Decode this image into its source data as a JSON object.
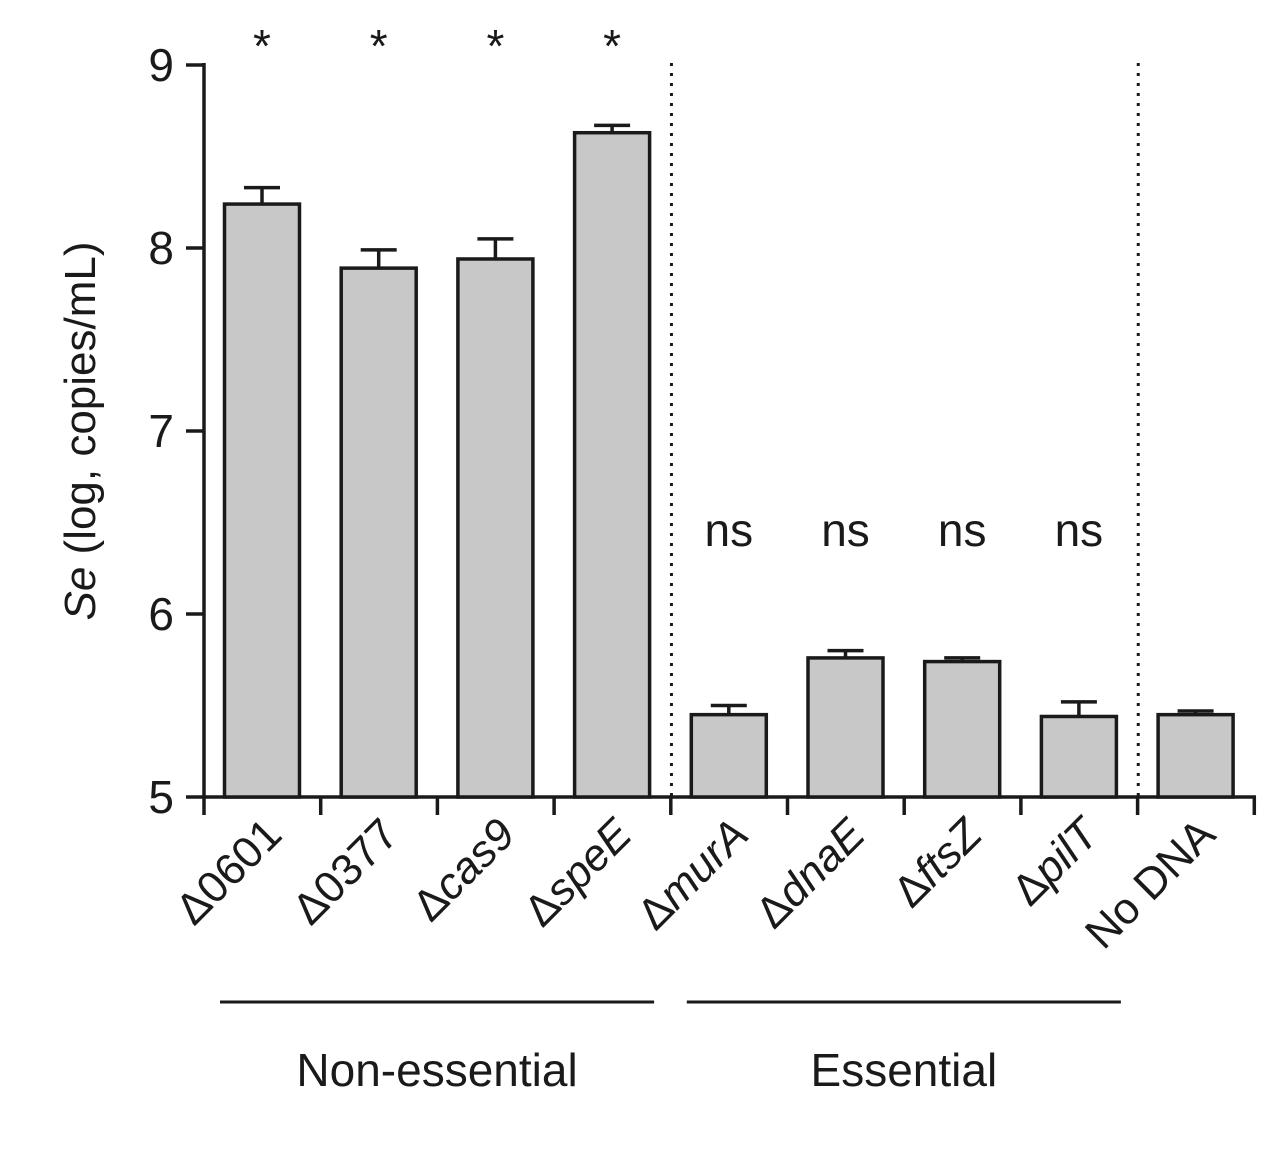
{
  "chart_data": {
    "type": "bar",
    "title": "",
    "ylabel_italic": "Se",
    "ylabel_rest": " (log, copies/mL)",
    "ylim": [
      5,
      9
    ],
    "yticks": [
      "5",
      "6",
      "7",
      "8",
      "9"
    ],
    "categories": [
      {
        "prefix": "Δ",
        "name": "0601",
        "italic": false
      },
      {
        "prefix": "Δ",
        "name": "0377",
        "italic": false
      },
      {
        "prefix": "Δ",
        "name": "cas9",
        "italic": true
      },
      {
        "prefix": "Δ",
        "name": "speE",
        "italic": true
      },
      {
        "prefix": "Δ",
        "name": "murA",
        "italic": true
      },
      {
        "prefix": "Δ",
        "name": "dnaE",
        "italic": true
      },
      {
        "prefix": "Δ",
        "name": "ftsZ",
        "italic": true
      },
      {
        "prefix": "Δ",
        "name": "pilT",
        "italic": true
      },
      {
        "prefix": "",
        "name": "No DNA",
        "italic": false
      }
    ],
    "values": [
      8.24,
      7.89,
      7.94,
      8.63,
      5.45,
      5.76,
      5.74,
      5.44,
      5.45
    ],
    "errors": [
      0.09,
      0.1,
      0.11,
      0.04,
      0.05,
      0.04,
      0.02,
      0.08,
      0.02
    ],
    "significance": [
      "*",
      "*",
      "*",
      "*",
      "ns",
      "ns",
      "ns",
      "ns",
      ""
    ],
    "groups": [
      {
        "label": "Non-essential",
        "start": 0,
        "end": 3
      },
      {
        "label": "Essential",
        "start": 4,
        "end": 7
      }
    ],
    "dividers_after": [
      3,
      7
    ],
    "bar_color": "#c8c8c8",
    "edge_color": "#1a1a1a"
  }
}
